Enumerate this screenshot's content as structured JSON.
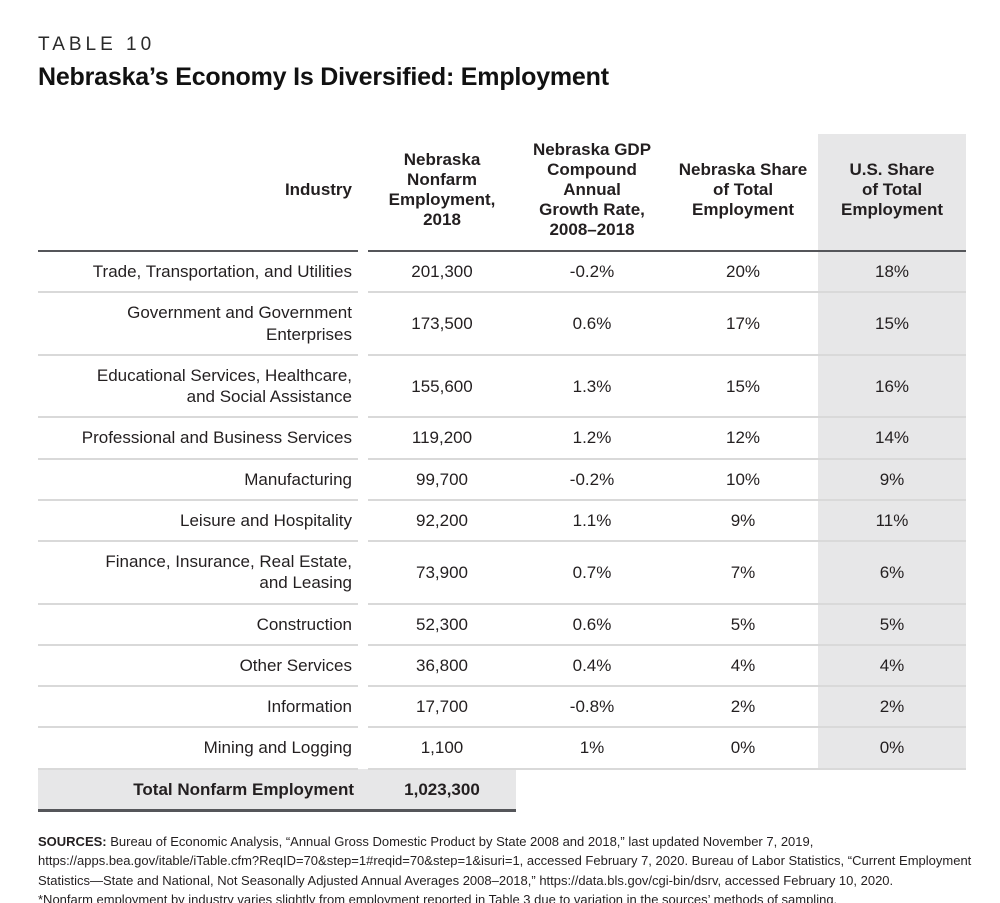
{
  "page": {
    "eyebrow": "TABLE 10",
    "title": "Nebraska’s Economy Is Diversified: Employment"
  },
  "colors": {
    "shaded_column": "#e7e7e8",
    "rule_dark": "#55565a",
    "rule_light": "#d9d9d9",
    "text": "#231f20"
  },
  "table": {
    "columns": {
      "industry": "Industry",
      "employment": "Nebraska\nNonfarm\nEmployment, 2018",
      "gdp_growth": "Nebraska GDP\nCompound Annual\nGrowth Rate,\n2008–2018",
      "ne_share": "Nebraska Share\nof Total\nEmployment",
      "us_share": "U.S. Share\nof Total\nEmployment"
    },
    "rows": [
      {
        "industry": "Trade, Transportation, and Utilities",
        "employment": "201,300",
        "gdp_growth": "-0.2%",
        "ne_share": "20%",
        "us_share": "18%"
      },
      {
        "industry": "Government and Government\nEnterprises",
        "employment": "173,500",
        "gdp_growth": "0.6%",
        "ne_share": "17%",
        "us_share": "15%"
      },
      {
        "industry": "Educational Services, Healthcare,\nand Social Assistance",
        "employment": "155,600",
        "gdp_growth": "1.3%",
        "ne_share": "15%",
        "us_share": "16%"
      },
      {
        "industry": "Professional and Business Services",
        "employment": "119,200",
        "gdp_growth": "1.2%",
        "ne_share": "12%",
        "us_share": "14%"
      },
      {
        "industry": "Manufacturing",
        "employment": "99,700",
        "gdp_growth": "-0.2%",
        "ne_share": "10%",
        "us_share": "9%"
      },
      {
        "industry": "Leisure and Hospitality",
        "employment": "92,200",
        "gdp_growth": "1.1%",
        "ne_share": "9%",
        "us_share": "11%"
      },
      {
        "industry": "Finance, Insurance, Real Estate,\nand Leasing",
        "employment": "73,900",
        "gdp_growth": "0.7%",
        "ne_share": "7%",
        "us_share": "6%"
      },
      {
        "industry": "Construction",
        "employment": "52,300",
        "gdp_growth": "0.6%",
        "ne_share": "5%",
        "us_share": "5%"
      },
      {
        "industry": "Other Services",
        "employment": "36,800",
        "gdp_growth": "0.4%",
        "ne_share": "4%",
        "us_share": "4%"
      },
      {
        "industry": "Information",
        "employment": "17,700",
        "gdp_growth": "-0.8%",
        "ne_share": "2%",
        "us_share": "2%"
      },
      {
        "industry": "Mining and Logging",
        "employment": "1,100",
        "gdp_growth": "1%",
        "ne_share": "0%",
        "us_share": "0%"
      }
    ],
    "total": {
      "label": "Total Nonfarm Employment",
      "value": "1,023,300"
    }
  },
  "footer": {
    "sources_label": "SOURCES:",
    "sources_text": " Bureau of Economic Analysis, “Annual Gross Domestic Product by State 2008 and 2018,” last updated November 7, 2019, https://apps.bea.gov/itable/iTable.cfm?ReqID=70&step=1#reqid=70&step=1&isuri=1, accessed February 7, 2020. Bureau of Labor Statistics, “Current Employment Statistics—State and National, Not Seasonally Adjusted Annual Averages 2008–2018,” https://data.bls.gov/cgi-bin/dsrv, accessed February 10, 2020.",
    "footnote": "*Nonfarm employment by industry varies slightly from employment reported in Table 3 due to variation in the sources’ methods of sampling."
  }
}
